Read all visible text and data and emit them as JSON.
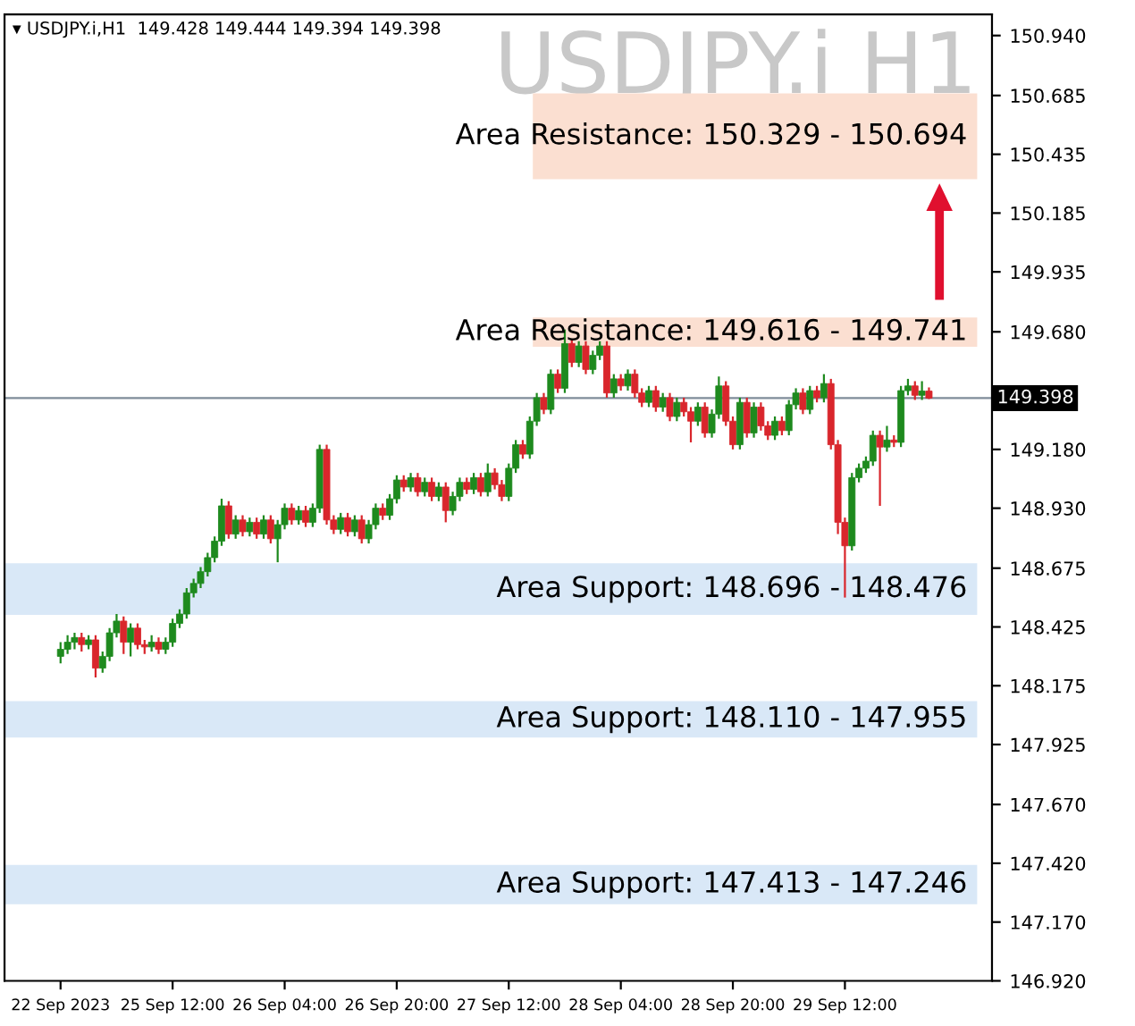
{
  "chart_data": {
    "type": "candlestick",
    "title": "USDJPY.i H1",
    "subtitle": "▾ USDJPY.i,H1  149.428 149.444 149.394 149.398",
    "categories": [
      "22 Sep 2023",
      null,
      null,
      null,
      null,
      null,
      null,
      null,
      null,
      null,
      null,
      null,
      null,
      null,
      null,
      null,
      "25 Sep 12:00",
      null,
      null,
      null,
      null,
      null,
      null,
      null,
      null,
      null,
      null,
      null,
      null,
      null,
      null,
      null,
      "26 Sep 04:00",
      null,
      null,
      null,
      null,
      null,
      null,
      null,
      null,
      null,
      null,
      null,
      null,
      null,
      null,
      null,
      "26 Sep 20:00",
      null,
      null,
      null,
      null,
      null,
      null,
      null,
      null,
      null,
      null,
      null,
      null,
      null,
      null,
      null,
      "27 Sep 12:00",
      null,
      null,
      null,
      null,
      null,
      null,
      null,
      null,
      null,
      null,
      null,
      null,
      null,
      null,
      null,
      "28 Sep 04:00",
      null,
      null,
      null,
      null,
      null,
      null,
      null,
      null,
      null,
      null,
      null,
      null,
      null,
      null,
      null,
      "28 Sep 20:00",
      null,
      null,
      null,
      null,
      null,
      null,
      null,
      null,
      null,
      null,
      null,
      null,
      null,
      null,
      null,
      "29 Sep 12:00",
      null,
      null,
      null,
      null,
      null,
      null,
      null,
      null,
      null,
      null,
      null,
      null
    ],
    "colors": [
      "#1e8a1e",
      "#1e8a1e",
      "#1e8a1e",
      "#d9262c",
      "#1e8a1e",
      "#d9262c",
      "#1e8a1e",
      "#1e8a1e",
      "#1e8a1e",
      "#d9262c",
      "#1e8a1e",
      "#d9262c",
      "#d9262c",
      "#1e8a1e",
      "#d9262c",
      "#1e8a1e",
      "#1e8a1e",
      "#1e8a1e",
      "#1e8a1e",
      "#1e8a1e",
      "#1e8a1e",
      "#1e8a1e",
      "#1e8a1e",
      "#1e8a1e",
      "#d9262c",
      "#1e8a1e",
      "#d9262c",
      "#1e8a1e",
      "#d9262c",
      "#1e8a1e",
      "#d9262c",
      "#1e8a1e",
      "#1e8a1e",
      "#d9262c",
      "#1e8a1e",
      "#d9262c",
      "#1e8a1e",
      "#1e8a1e",
      "#d9262c",
      "#d9262c",
      "#1e8a1e",
      "#d9262c",
      "#1e8a1e",
      "#d9262c",
      "#1e8a1e",
      "#1e8a1e",
      "#d9262c",
      "#1e8a1e",
      "#1e8a1e",
      "#d9262c",
      "#1e8a1e",
      "#d9262c",
      "#1e8a1e",
      "#d9262c",
      "#1e8a1e",
      "#d9262c",
      "#1e8a1e",
      "#1e8a1e",
      "#d9262c",
      "#1e8a1e",
      "#d9262c",
      "#1e8a1e",
      "#d9262c",
      "#d9262c",
      "#1e8a1e",
      "#1e8a1e",
      "#d9262c",
      "#1e8a1e",
      "#1e8a1e",
      "#d9262c",
      "#1e8a1e",
      "#d9262c",
      "#1e8a1e",
      "#d9262c",
      "#1e8a1e",
      "#d9262c",
      "#1e8a1e",
      "#1e8a1e",
      "#d9262c",
      "#1e8a1e",
      "#d9262c",
      "#1e8a1e",
      "#d9262c",
      "#d9262c",
      "#1e8a1e",
      "#d9262c",
      "#1e8a1e",
      "#d9262c",
      "#1e8a1e",
      "#d9262c",
      "#d9262c",
      "#1e8a1e",
      "#d9262c",
      "#1e8a1e",
      "#1e8a1e",
      "#d9262c",
      "#d9262c",
      "#1e8a1e",
      "#d9262c",
      "#1e8a1e",
      "#d9262c",
      "#d9262c",
      "#1e8a1e",
      "#d9262c",
      "#1e8a1e",
      "#1e8a1e",
      "#d9262c",
      "#1e8a1e",
      "#d9262c",
      "#1e8a1e",
      "#d9262c",
      "#d9262c",
      "#d9262c",
      "#1e8a1e",
      "#1e8a1e",
      "#1e8a1e",
      "#1e8a1e",
      "#d9262c",
      "#1e8a1e",
      "#d9262c",
      "#1e8a1e",
      "#1e8a1e",
      "#d9262c",
      "#1e8a1e",
      "#d9262c"
    ],
    "ohlc": [
      [
        148.3,
        148.36,
        148.27,
        148.33
      ],
      [
        148.33,
        148.39,
        148.31,
        148.36
      ],
      [
        148.36,
        148.4,
        148.33,
        148.38
      ],
      [
        148.38,
        148.4,
        148.32,
        148.35
      ],
      [
        148.35,
        148.39,
        148.33,
        148.37
      ],
      [
        148.37,
        148.39,
        148.21,
        148.25
      ],
      [
        148.25,
        148.32,
        148.23,
        148.3
      ],
      [
        148.3,
        148.42,
        148.28,
        148.4
      ],
      [
        148.4,
        148.48,
        148.38,
        148.45
      ],
      [
        148.45,
        148.47,
        148.31,
        148.36
      ],
      [
        148.36,
        148.44,
        148.3,
        148.42
      ],
      [
        148.42,
        148.44,
        148.33,
        148.35
      ],
      [
        148.35,
        148.37,
        148.31,
        148.34
      ],
      [
        148.34,
        148.39,
        148.32,
        148.36
      ],
      [
        148.36,
        148.38,
        148.31,
        148.33
      ],
      [
        148.33,
        148.38,
        148.31,
        148.36
      ],
      [
        148.36,
        148.46,
        148.34,
        148.44
      ],
      [
        148.44,
        148.5,
        148.42,
        148.48
      ],
      [
        148.48,
        148.59,
        148.46,
        148.57
      ],
      [
        148.57,
        148.63,
        148.55,
        148.61
      ],
      [
        148.61,
        148.68,
        148.59,
        148.66
      ],
      [
        148.66,
        148.74,
        148.64,
        148.72
      ],
      [
        148.72,
        148.81,
        148.7,
        148.79
      ],
      [
        148.79,
        148.97,
        148.77,
        148.94
      ],
      [
        148.94,
        148.96,
        148.8,
        148.82
      ],
      [
        148.82,
        148.9,
        148.8,
        148.88
      ],
      [
        148.88,
        148.9,
        148.81,
        148.83
      ],
      [
        148.83,
        148.89,
        148.81,
        148.87
      ],
      [
        148.87,
        148.89,
        148.8,
        148.82
      ],
      [
        148.82,
        148.9,
        148.8,
        148.88
      ],
      [
        148.88,
        148.9,
        148.78,
        148.8
      ],
      [
        148.8,
        148.88,
        148.7,
        148.86
      ],
      [
        148.86,
        148.95,
        148.84,
        148.93
      ],
      [
        148.93,
        148.95,
        148.86,
        148.88
      ],
      [
        148.88,
        148.94,
        148.86,
        148.92
      ],
      [
        148.92,
        148.94,
        148.85,
        148.87
      ],
      [
        148.87,
        148.95,
        148.85,
        148.93
      ],
      [
        148.93,
        149.2,
        148.91,
        149.18
      ],
      [
        149.18,
        149.2,
        148.86,
        148.88
      ],
      [
        148.88,
        148.9,
        148.82,
        148.84
      ],
      [
        148.84,
        148.91,
        148.82,
        148.89
      ],
      [
        148.89,
        148.91,
        148.81,
        148.83
      ],
      [
        148.83,
        148.9,
        148.81,
        148.88
      ],
      [
        148.88,
        148.9,
        148.78,
        148.8
      ],
      [
        148.8,
        148.88,
        148.78,
        148.86
      ],
      [
        148.86,
        148.95,
        148.84,
        148.93
      ],
      [
        148.93,
        148.95,
        148.88,
        148.9
      ],
      [
        148.9,
        148.99,
        148.88,
        148.97
      ],
      [
        148.97,
        149.07,
        148.95,
        149.05
      ],
      [
        149.05,
        149.07,
        149.0,
        149.02
      ],
      [
        149.02,
        149.08,
        149.0,
        149.06
      ],
      [
        149.06,
        149.08,
        148.98,
        149.0
      ],
      [
        149.0,
        149.06,
        148.98,
        149.04
      ],
      [
        149.04,
        149.06,
        148.96,
        148.98
      ],
      [
        148.98,
        149.04,
        148.96,
        149.02
      ],
      [
        149.02,
        149.04,
        148.87,
        148.92
      ],
      [
        148.92,
        149.0,
        148.9,
        148.98
      ],
      [
        148.98,
        149.06,
        148.96,
        149.04
      ],
      [
        149.04,
        149.06,
        148.99,
        149.01
      ],
      [
        149.01,
        149.08,
        148.99,
        149.06
      ],
      [
        149.06,
        149.08,
        148.98,
        149.0
      ],
      [
        149.0,
        149.12,
        148.98,
        149.08
      ],
      [
        149.08,
        149.1,
        149.01,
        149.03
      ],
      [
        149.03,
        149.05,
        148.96,
        148.98
      ],
      [
        148.98,
        149.12,
        148.96,
        149.1
      ],
      [
        149.1,
        149.22,
        149.08,
        149.2
      ],
      [
        149.2,
        149.22,
        149.14,
        149.16
      ],
      [
        149.16,
        149.32,
        149.14,
        149.3
      ],
      [
        149.3,
        149.42,
        149.28,
        149.4
      ],
      [
        149.4,
        149.42,
        149.33,
        149.35
      ],
      [
        149.35,
        149.52,
        149.33,
        149.5
      ],
      [
        149.5,
        149.52,
        149.42,
        149.44
      ],
      [
        149.44,
        149.69,
        149.42,
        149.63
      ],
      [
        149.63,
        149.65,
        149.53,
        149.55
      ],
      [
        149.55,
        149.64,
        149.53,
        149.62
      ],
      [
        149.62,
        149.64,
        149.5,
        149.52
      ],
      [
        149.52,
        149.6,
        149.5,
        149.58
      ],
      [
        149.58,
        149.64,
        149.56,
        149.62
      ],
      [
        149.62,
        149.64,
        149.4,
        149.42
      ],
      [
        149.42,
        149.5,
        149.4,
        149.48
      ],
      [
        149.48,
        149.5,
        149.43,
        149.45
      ],
      [
        149.45,
        149.52,
        149.43,
        149.5
      ],
      [
        149.5,
        149.52,
        149.4,
        149.42
      ],
      [
        149.42,
        149.44,
        149.36,
        149.38
      ],
      [
        149.38,
        149.45,
        149.36,
        149.43
      ],
      [
        149.43,
        149.45,
        149.34,
        149.36
      ],
      [
        149.36,
        149.42,
        149.34,
        149.4
      ],
      [
        149.4,
        149.42,
        149.3,
        149.32
      ],
      [
        149.32,
        149.4,
        149.3,
        149.38
      ],
      [
        149.38,
        149.4,
        149.32,
        149.34
      ],
      [
        149.34,
        149.36,
        149.21,
        149.3
      ],
      [
        149.3,
        149.38,
        149.28,
        149.36
      ],
      [
        149.36,
        149.38,
        149.23,
        149.25
      ],
      [
        149.25,
        149.35,
        149.23,
        149.33
      ],
      [
        149.33,
        149.49,
        149.31,
        149.45
      ],
      [
        149.45,
        149.47,
        149.28,
        149.3
      ],
      [
        149.3,
        149.32,
        149.18,
        149.2
      ],
      [
        149.2,
        149.4,
        149.18,
        149.38
      ],
      [
        149.38,
        149.4,
        149.23,
        149.25
      ],
      [
        149.25,
        149.38,
        149.23,
        149.36
      ],
      [
        149.36,
        149.38,
        149.26,
        149.28
      ],
      [
        149.28,
        149.3,
        149.22,
        149.24
      ],
      [
        149.24,
        149.32,
        149.22,
        149.3
      ],
      [
        149.3,
        149.32,
        149.24,
        149.26
      ],
      [
        149.26,
        149.39,
        149.24,
        149.37
      ],
      [
        149.37,
        149.44,
        149.35,
        149.42
      ],
      [
        149.42,
        149.44,
        149.33,
        149.35
      ],
      [
        149.35,
        149.45,
        149.33,
        149.43
      ],
      [
        149.43,
        149.45,
        149.38,
        149.4
      ],
      [
        149.4,
        149.5,
        149.38,
        149.46
      ],
      [
        149.46,
        149.48,
        149.18,
        149.2
      ],
      [
        149.2,
        149.22,
        148.82,
        148.87
      ],
      [
        148.87,
        148.89,
        148.55,
        148.77
      ],
      [
        148.77,
        149.08,
        148.75,
        149.06
      ],
      [
        149.06,
        149.12,
        149.04,
        149.1
      ],
      [
        149.1,
        149.15,
        149.08,
        149.13
      ],
      [
        149.13,
        149.26,
        149.11,
        149.24
      ],
      [
        149.24,
        149.26,
        148.94,
        149.19
      ],
      [
        149.19,
        149.28,
        149.17,
        149.22
      ],
      [
        149.22,
        149.24,
        149.19,
        149.21
      ],
      [
        149.21,
        149.45,
        149.19,
        149.43
      ],
      [
        149.43,
        149.48,
        149.41,
        149.45
      ],
      [
        149.45,
        149.47,
        149.39,
        149.41
      ],
      [
        149.41,
        149.47,
        149.39,
        149.428
      ],
      [
        149.428,
        149.444,
        149.394,
        149.398
      ]
    ],
    "ylim": [
      146.92,
      151.03
    ],
    "yticks": [
      {
        "value": 150.94,
        "label": "150.940"
      },
      150.685,
      150.435,
      150.185,
      149.935,
      {
        "value": 149.68,
        "label": "149.680"
      },
      {
        "value": 149.18,
        "label": "149.180"
      },
      {
        "value": 148.93,
        "label": "148.930"
      },
      148.675,
      148.425,
      148.175,
      147.925,
      {
        "value": 147.67,
        "label": "147.670"
      },
      {
        "value": 147.42,
        "label": "147.420"
      },
      {
        "value": 147.17,
        "label": "147.170"
      },
      {
        "value": 146.92,
        "label": "146.920"
      }
    ],
    "ref_lines": [
      {
        "axis": "y",
        "value": 149.398,
        "label": "149.398",
        "color": "#7f8c99"
      }
    ],
    "bands": [
      {
        "axis": "y",
        "from": 150.329,
        "to": 150.694,
        "label": "Area Resistance: 150.329 - 150.694",
        "color": "#fbdfd1"
      },
      {
        "axis": "y",
        "from": 149.616,
        "to": 149.741,
        "label": "Area Resistance: 149.616 - 149.741",
        "color": "#fbdfd1"
      },
      {
        "axis": "y",
        "from": 148.476,
        "to": 148.696,
        "label": "Area Support: 148.696 - 148.476",
        "color": "#d9e8f7"
      },
      {
        "axis": "y",
        "from": 147.955,
        "to": 148.11,
        "label": "Area Support: 148.110 - 147.955",
        "color": "#d9e8f7"
      },
      {
        "axis": "y",
        "from": 147.246,
        "to": 147.413,
        "label": "Area Support: 147.413 - 147.246",
        "color": "#d9e8f7"
      }
    ],
    "grid": false,
    "legend": false
  }
}
